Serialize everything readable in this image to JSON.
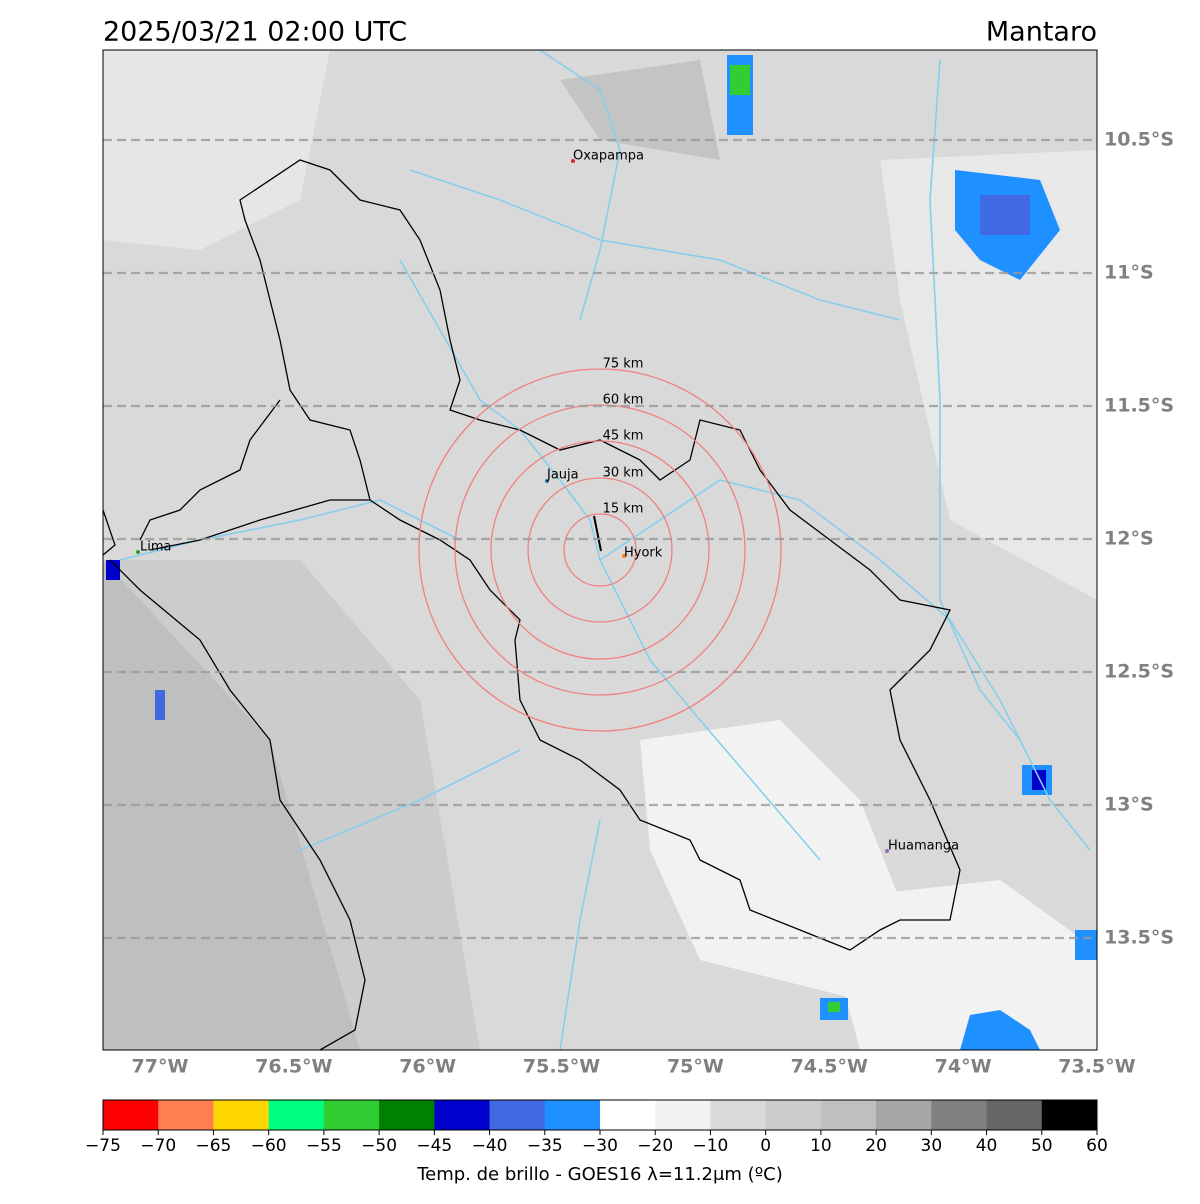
{
  "header": {
    "title": "2025/03/21 02:00 UTC",
    "region": "Mantaro"
  },
  "map": {
    "lat_lines": [
      {
        "value": -10.5,
        "label": "10.5°S"
      },
      {
        "value": -11,
        "label": "11°S"
      },
      {
        "value": -11.5,
        "label": "11.5°S"
      },
      {
        "value": -12,
        "label": "12°S"
      },
      {
        "value": -12.5,
        "label": "12.5°S"
      },
      {
        "value": -13,
        "label": "13°S"
      },
      {
        "value": -13.5,
        "label": "13.5°S"
      }
    ],
    "lon_ticks": [
      {
        "value": -77,
        "label": "77°W"
      },
      {
        "value": -76.5,
        "label": "76.5°W"
      },
      {
        "value": -76,
        "label": "76°W"
      },
      {
        "value": -75.5,
        "label": "75.5°W"
      },
      {
        "value": -75,
        "label": "75°W"
      },
      {
        "value": -74.5,
        "label": "74.5°W"
      },
      {
        "value": -74,
        "label": "74°W"
      },
      {
        "value": -73.5,
        "label": "73.5°W"
      }
    ],
    "cities": [
      "Oxapampa",
      "Jauja",
      "Lima",
      "Hyork",
      "Huamanga"
    ],
    "rings": [
      "15 km",
      "30 km",
      "45 km",
      "60 km",
      "75 km"
    ]
  },
  "colorbar": {
    "colors": [
      "#ff0000",
      "#ff7f50",
      "#ffd700",
      "#00ff7f",
      "#32cd32",
      "#008000",
      "#0000cd",
      "#4169e1",
      "#1e90ff",
      "#ffffff",
      "#f2f2f2",
      "#d9d9d9",
      "#cccccc",
      "#bfbfbf",
      "#a6a6a6",
      "#808080",
      "#666666",
      "#000000"
    ],
    "ticks": [
      {
        "value": -75,
        "label": "−75"
      },
      {
        "value": -70,
        "label": "−70"
      },
      {
        "value": -65,
        "label": "−65"
      },
      {
        "value": -60,
        "label": "−60"
      },
      {
        "value": -55,
        "label": "−55"
      },
      {
        "value": -50,
        "label": "−50"
      },
      {
        "value": -45,
        "label": "−45"
      },
      {
        "value": -40,
        "label": "−40"
      },
      {
        "value": -35,
        "label": "−35"
      },
      {
        "value": -30,
        "label": "−30"
      },
      {
        "value": -20,
        "label": "−20"
      },
      {
        "value": -10,
        "label": "−10"
      },
      0,
      10,
      20,
      30,
      40,
      50,
      60
    ],
    "label": "Temp. de brillo - GOES16 λ=11.2μm (ºC)"
  }
}
